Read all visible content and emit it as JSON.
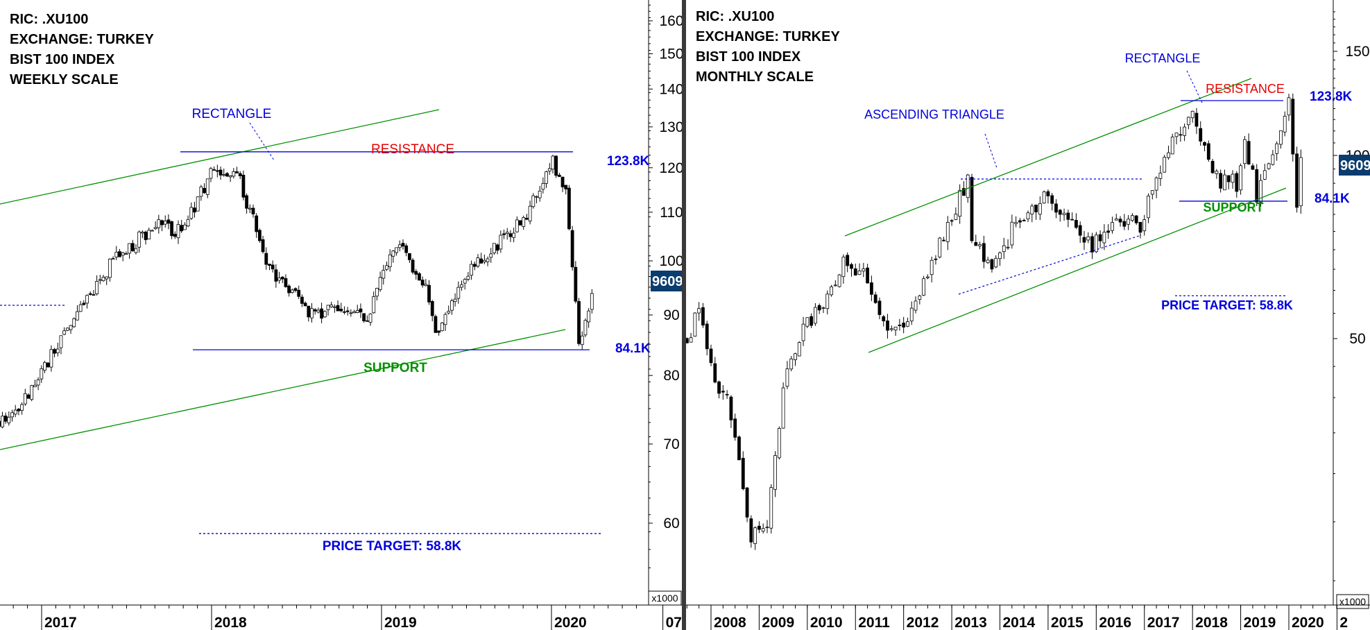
{
  "chart_data": [
    {
      "type": "candlestick",
      "info_lines": [
        "RIC: .XU100",
        "EXCHANGE: TURKEY",
        "BIST 100 INDEX",
        "WEEKLY SCALE"
      ],
      "x_tick_labels": [
        "2017",
        "2018",
        "2019",
        "2020"
      ],
      "y_tick_labels": [
        "160",
        "150",
        "140",
        "130",
        "120",
        "110",
        "100",
        "90",
        "80",
        "70",
        "60"
      ],
      "y_ticks": [
        160,
        150,
        140,
        130,
        120,
        110,
        100,
        90,
        80,
        70,
        60
      ],
      "ylim": [
        53,
        168
      ],
      "y_scale": "log",
      "y_unit_label": "x1000",
      "last_price_label": "9609",
      "last_price": 96.09,
      "price_path": [
        [
          "2016-10",
          73
        ],
        [
          "2016-12",
          77
        ],
        [
          "2017-03",
          88
        ],
        [
          "2017-06",
          100
        ],
        [
          "2017-09",
          107
        ],
        [
          "2017-11",
          106
        ],
        [
          "2018-01",
          119
        ],
        [
          "2018-03",
          117
        ],
        [
          "2018-05",
          99
        ],
        [
          "2018-08",
          90
        ],
        [
          "2018-10",
          91
        ],
        [
          "2018-12",
          90
        ],
        [
          "2019-02",
          104
        ],
        [
          "2019-04",
          96
        ],
        [
          "2019-05",
          86
        ],
        [
          "2019-07",
          98
        ],
        [
          "2019-09",
          103
        ],
        [
          "2019-11",
          108
        ],
        [
          "2020-01",
          122
        ],
        [
          "2020-02",
          115
        ],
        [
          "2020-03",
          84
        ],
        [
          "2020-04",
          96
        ]
      ],
      "annotations": {
        "pattern_label": "RECTANGLE",
        "resistance_label": "RESISTANCE",
        "support_label": "SUPPORT",
        "resistance_value_label": "123.8K",
        "support_value_label": "84.1K",
        "target_label": "PRICE TARGET: 58.8K",
        "resistance": 123.8,
        "support": 84.1,
        "target": 58.8
      },
      "colors": {
        "resistance_text": "#e60000",
        "annotation_text": "#0000dd",
        "support_text": "#009000",
        "channel_line": "#009000",
        "level_line": "#0000dd",
        "badge": "#0b3c6e"
      }
    },
    {
      "type": "candlestick",
      "info_lines": [
        "RIC: .XU100",
        "EXCHANGE: TURKEY",
        "BIST 100 INDEX",
        "MONTHLY SCALE"
      ],
      "x_tick_labels": [
        "07",
        "2008",
        "2009",
        "2010",
        "2011",
        "2012",
        "2013",
        "2014",
        "2015",
        "2016",
        "2017",
        "2018",
        "2019",
        "2020",
        "2"
      ],
      "y_tick_labels": [
        "150",
        "100",
        "50"
      ],
      "y_ticks": [
        150,
        100,
        50
      ],
      "ylim": [
        20,
        175
      ],
      "y_scale": "log",
      "y_unit_label": "x1000",
      "last_price_label": "9609",
      "last_price": 96.09,
      "price_path": [
        [
          "2007-07",
          50
        ],
        [
          "2007-10",
          56
        ],
        [
          "2008-01",
          45
        ],
        [
          "2008-06",
          38
        ],
        [
          "2008-11",
          24
        ],
        [
          "2009-03",
          25
        ],
        [
          "2009-07",
          42
        ],
        [
          "2009-12",
          52
        ],
        [
          "2010-06",
          58
        ],
        [
          "2010-11",
          68
        ],
        [
          "2011-03",
          63
        ],
        [
          "2011-08",
          54
        ],
        [
          "2011-12",
          52
        ],
        [
          "2012-05",
          60
        ],
        [
          "2012-12",
          78
        ],
        [
          "2013-05",
          90
        ],
        [
          "2013-06",
          72
        ],
        [
          "2013-09",
          68
        ],
        [
          "2013-12",
          66
        ],
        [
          "2014-06",
          80
        ],
        [
          "2014-12",
          85
        ],
        [
          "2015-06",
          78
        ],
        [
          "2015-12",
          71
        ],
        [
          "2016-06",
          78
        ],
        [
          "2016-12",
          77
        ],
        [
          "2017-06",
          100
        ],
        [
          "2017-12",
          115
        ],
        [
          "2018-01",
          119
        ],
        [
          "2018-05",
          99
        ],
        [
          "2018-08",
          90
        ],
        [
          "2018-12",
          90
        ],
        [
          "2019-02",
          104
        ],
        [
          "2019-05",
          86
        ],
        [
          "2019-09",
          103
        ],
        [
          "2020-01",
          122
        ],
        [
          "2020-03",
          84
        ],
        [
          "2020-04",
          96
        ]
      ],
      "annotations": {
        "pattern_label": "RECTANGLE",
        "pattern2_label": "ASCENDING TRIANGLE",
        "resistance_label": "RESISTANCE",
        "support_label": "SUPPORT",
        "resistance_value_label": "123.8K",
        "support_value_label": "84.1K",
        "target_label": "PRICE TARGET: 58.8K",
        "resistance": 123.8,
        "support": 84.1,
        "target": 58.8
      },
      "colors": {
        "resistance_text": "#e60000",
        "annotation_text": "#0000dd",
        "support_text": "#009000",
        "channel_line": "#009000",
        "level_line": "#0000dd",
        "badge": "#0b3c6e"
      }
    }
  ]
}
